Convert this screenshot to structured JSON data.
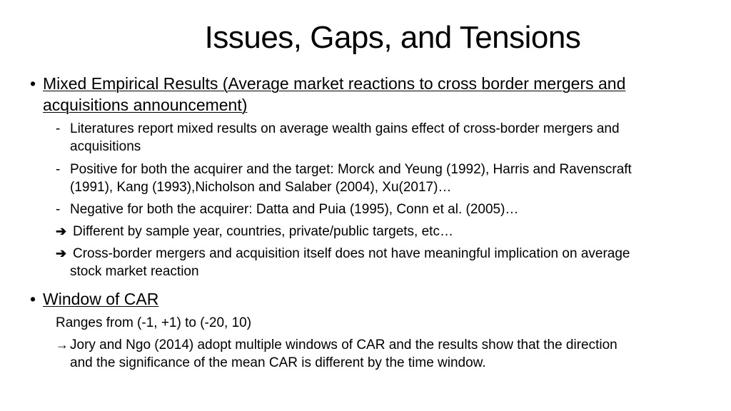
{
  "slide": {
    "title": "Issues, Gaps, and Tensions"
  },
  "section1": {
    "heading_line1": "Mixed Empirical Results (Average market reactions to cross border mergers and",
    "heading_line2": "acquisitions announcement)",
    "items": [
      {
        "line1": "Literatures report mixed results on average wealth gains effect of cross-border mergers and",
        "line2": "acquisitions"
      },
      {
        "line1": "Positive for both the acquirer and the target: Morck and Yeung (1992), Harris and Ravenscraft",
        "line2": "(1991), Kang (1993),Nicholson and Salaber (2004),  Xu(2017)…"
      },
      {
        "line1": "Negative for both the acquirer: Datta and Puia (1995), Conn et al. (2005)…"
      }
    ],
    "conclusions": [
      {
        "line1": "Different by sample year, countries, private/public targets, etc…"
      },
      {
        "line1": "Cross-border mergers and acquisition itself does not have meaningful implication on average",
        "line2": "stock market reaction"
      }
    ]
  },
  "section2": {
    "heading": "Window of CAR",
    "range_text": "Ranges from (-1, +1) to (-20, 10)",
    "conclusion_line1": "Jory and Ngo (2014) adopt multiple windows of CAR and the results show that the direction",
    "conclusion_line2": "and the significance of the mean CAR is different by the time window."
  },
  "symbols": {
    "bullet": "•",
    "dash": "-",
    "arrow": "➔",
    "thin_arrow": "→"
  }
}
